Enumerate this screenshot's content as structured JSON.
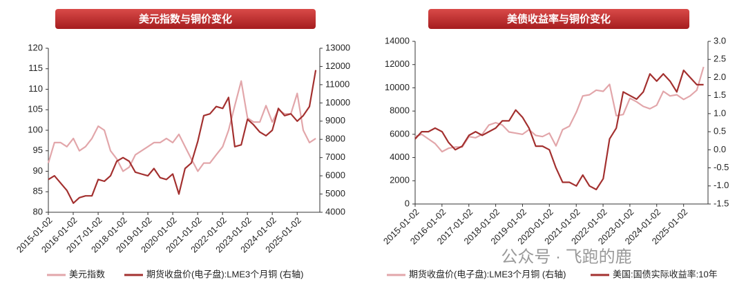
{
  "chart_data": [
    {
      "type": "line",
      "title": "美元指数与铜价变化",
      "x": [
        "2015-01-02",
        "2015-04-01",
        "2015-07-01",
        "2015-10-01",
        "2016-01-04",
        "2016-04-01",
        "2016-07-01",
        "2016-10-03",
        "2017-01-03",
        "2017-04-03",
        "2017-07-03",
        "2017-10-02",
        "2018-01-02",
        "2018-04-02",
        "2018-07-02",
        "2018-10-01",
        "2019-01-02",
        "2019-04-01",
        "2019-07-01",
        "2019-10-01",
        "2020-01-02",
        "2020-04-01",
        "2020-07-01",
        "2020-10-01",
        "2021-01-04",
        "2021-04-01",
        "2021-07-01",
        "2021-10-01",
        "2022-01-04",
        "2022-04-01",
        "2022-07-01",
        "2022-10-03",
        "2023-01-03",
        "2023-04-03",
        "2023-07-03",
        "2023-10-02",
        "2024-01-02",
        "2024-04-01",
        "2024-07-01",
        "2024-10-01",
        "2025-01-02",
        "2025-04-01",
        "2025-07-01",
        "2025-10-01"
      ],
      "xlim": [
        "2015-01-02",
        "2025-11-30"
      ],
      "xticks": [
        "2015-01-02",
        "2016-01-02",
        "2017-01-02",
        "2018-01-02",
        "2019-01-02",
        "2020-01-02",
        "2021-01-02",
        "2022-01-02",
        "2023-01-02",
        "2024-01-02",
        "2025-01-02"
      ],
      "ylim": [
        80,
        120
      ],
      "yticks": [
        80,
        85,
        90,
        95,
        100,
        105,
        110,
        115,
        120
      ],
      "y2lim": [
        4000,
        13000
      ],
      "y2ticks": [
        4000,
        5000,
        6000,
        7000,
        8000,
        9000,
        10000,
        11000,
        12000,
        13000
      ],
      "series": [
        {
          "name": "美元指数",
          "color": "#e2a6aa",
          "values": [
            92,
            97,
            97,
            96,
            98,
            95,
            96,
            98,
            101,
            100,
            95,
            93,
            90,
            91,
            94,
            95,
            96,
            97,
            97,
            98,
            97,
            99,
            96,
            93,
            90,
            92,
            92,
            94,
            96,
            100,
            106,
            112,
            103,
            102,
            102,
            106,
            102,
            105,
            104,
            104,
            109,
            100,
            97,
            98
          ]
        },
        {
          "name": "期货收盘价(电子盘):LME3个月铜 (右轴)",
          "color": "#a3302f",
          "axis": "y2",
          "values": [
            5800,
            6000,
            5600,
            5200,
            4500,
            4800,
            4900,
            4900,
            5800,
            5700,
            6000,
            6800,
            7000,
            6800,
            6200,
            6100,
            6000,
            6400,
            5900,
            5800,
            6100,
            5000,
            6400,
            6700,
            7900,
            9300,
            9400,
            9800,
            9700,
            10300,
            7600,
            7700,
            9100,
            8800,
            8400,
            8200,
            8500,
            9700,
            9300,
            9400,
            9000,
            9300,
            9800,
            11800
          ]
        }
      ]
    },
    {
      "type": "line",
      "title": "美债收益率与铜价变化",
      "x": [
        "2015-01-02",
        "2015-04-01",
        "2015-07-01",
        "2015-10-01",
        "2016-01-04",
        "2016-04-01",
        "2016-07-01",
        "2016-10-03",
        "2017-01-03",
        "2017-04-03",
        "2017-07-03",
        "2017-10-02",
        "2018-01-02",
        "2018-04-02",
        "2018-07-02",
        "2018-10-01",
        "2019-01-02",
        "2019-04-01",
        "2019-07-01",
        "2019-10-01",
        "2020-01-02",
        "2020-04-01",
        "2020-07-01",
        "2020-10-01",
        "2021-01-04",
        "2021-04-01",
        "2021-07-01",
        "2021-10-01",
        "2022-01-04",
        "2022-04-01",
        "2022-07-01",
        "2022-10-03",
        "2023-01-03",
        "2023-04-03",
        "2023-07-03",
        "2023-10-02",
        "2024-01-02",
        "2024-04-01",
        "2024-07-01",
        "2024-10-01",
        "2025-01-02",
        "2025-04-01",
        "2025-07-01",
        "2025-10-01"
      ],
      "xlim": [
        "2015-01-02",
        "2025-11-30"
      ],
      "xticks": [
        "2015-01-02",
        "2016-01-02",
        "2017-01-02",
        "2018-01-02",
        "2019-01-02",
        "2020-01-02",
        "2021-01-02",
        "2022-01-02",
        "2023-01-02",
        "2024-01-02",
        "2025-01-02"
      ],
      "ylim": [
        0,
        14000
      ],
      "yticks": [
        0,
        2000,
        4000,
        6000,
        8000,
        10000,
        12000,
        14000
      ],
      "y2lim": [
        -1.5,
        3.0
      ],
      "y2ticks": [
        -1.5,
        {
          "value": -1.0,
          "label": "-1.0"
        },
        -0.5,
        {
          "value": 0,
          "label": "0.0"
        },
        0.5,
        {
          "value": 1.0,
          "label": "1.0"
        },
        1.5,
        {
          "value": 2.0,
          "label": "2.0"
        },
        2.5,
        {
          "value": 3.0,
          "label": "3.0"
        }
      ],
      "series": [
        {
          "name": "期货收盘价(电子盘):LME3个月铜 (右轴)",
          "color": "#e2a6aa",
          "values": [
            5800,
            6000,
            5600,
            5200,
            4500,
            4800,
            4900,
            4900,
            5800,
            5700,
            6000,
            6800,
            7000,
            6800,
            6200,
            6100,
            6000,
            6400,
            5900,
            5800,
            6100,
            5000,
            6400,
            6700,
            7900,
            9300,
            9400,
            9800,
            9700,
            10300,
            7600,
            7700,
            9100,
            8800,
            8400,
            8200,
            8500,
            9700,
            9300,
            9400,
            9000,
            9300,
            9800,
            11800
          ]
        },
        {
          "name": "美国:国债实际收益率:10年",
          "color": "#a3302f",
          "axis": "y2",
          "values": [
            0.3,
            0.5,
            0.5,
            0.6,
            0.5,
            0.2,
            0.0,
            0.1,
            0.4,
            0.5,
            0.4,
            0.5,
            0.6,
            0.8,
            0.8,
            1.1,
            0.9,
            0.6,
            0.1,
            0.1,
            0.0,
            -0.5,
            -0.9,
            -0.9,
            -1.0,
            -0.7,
            -1.0,
            -1.1,
            -0.8,
            0.3,
            0.6,
            1.6,
            1.5,
            1.4,
            1.6,
            2.1,
            1.9,
            2.1,
            1.9,
            1.6,
            2.2,
            2.0,
            1.8,
            1.8
          ]
        }
      ]
    }
  ],
  "watermark": "公众号 · 飞跑的鹿"
}
